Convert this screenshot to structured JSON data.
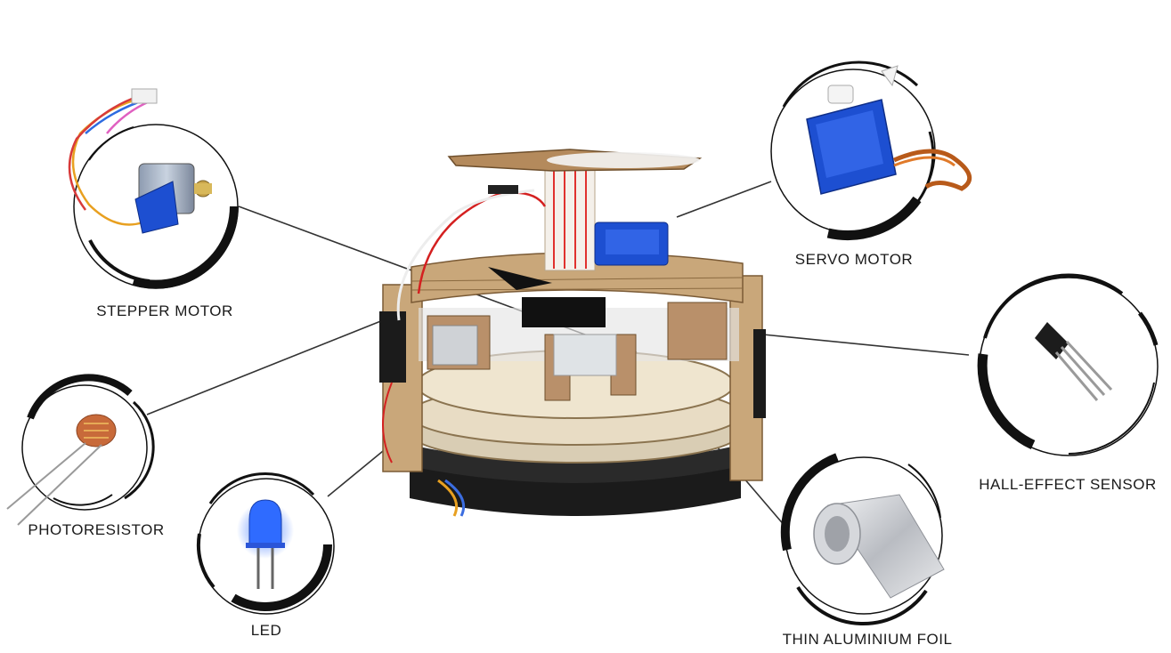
{
  "labels": {
    "stepper_motor": "STEPPER MOTOR",
    "servo_motor": "SERVO MOTOR",
    "hall_effect_sensor": "HALL-EFFECT SENSOR",
    "photoresistor": "PHOTORESISTOR",
    "led": "LED",
    "thin_aluminium_foil": "THIN ALUMINIUM FOIL"
  },
  "colors": {
    "ring": "#111111",
    "leader_line": "#333333",
    "cardboard": "#c9a77a",
    "wood_light": "#e8dcc4",
    "servo_blue": "#1d4fd1",
    "led_blue": "#2f6bff",
    "wire_red": "#d42020",
    "foil": "#c9cbd0"
  },
  "icons": [
    "stepper-motor-icon",
    "servo-motor-icon",
    "hall-sensor-icon",
    "photoresistor-icon",
    "led-icon",
    "foil-roll-icon",
    "central-device-photo"
  ]
}
